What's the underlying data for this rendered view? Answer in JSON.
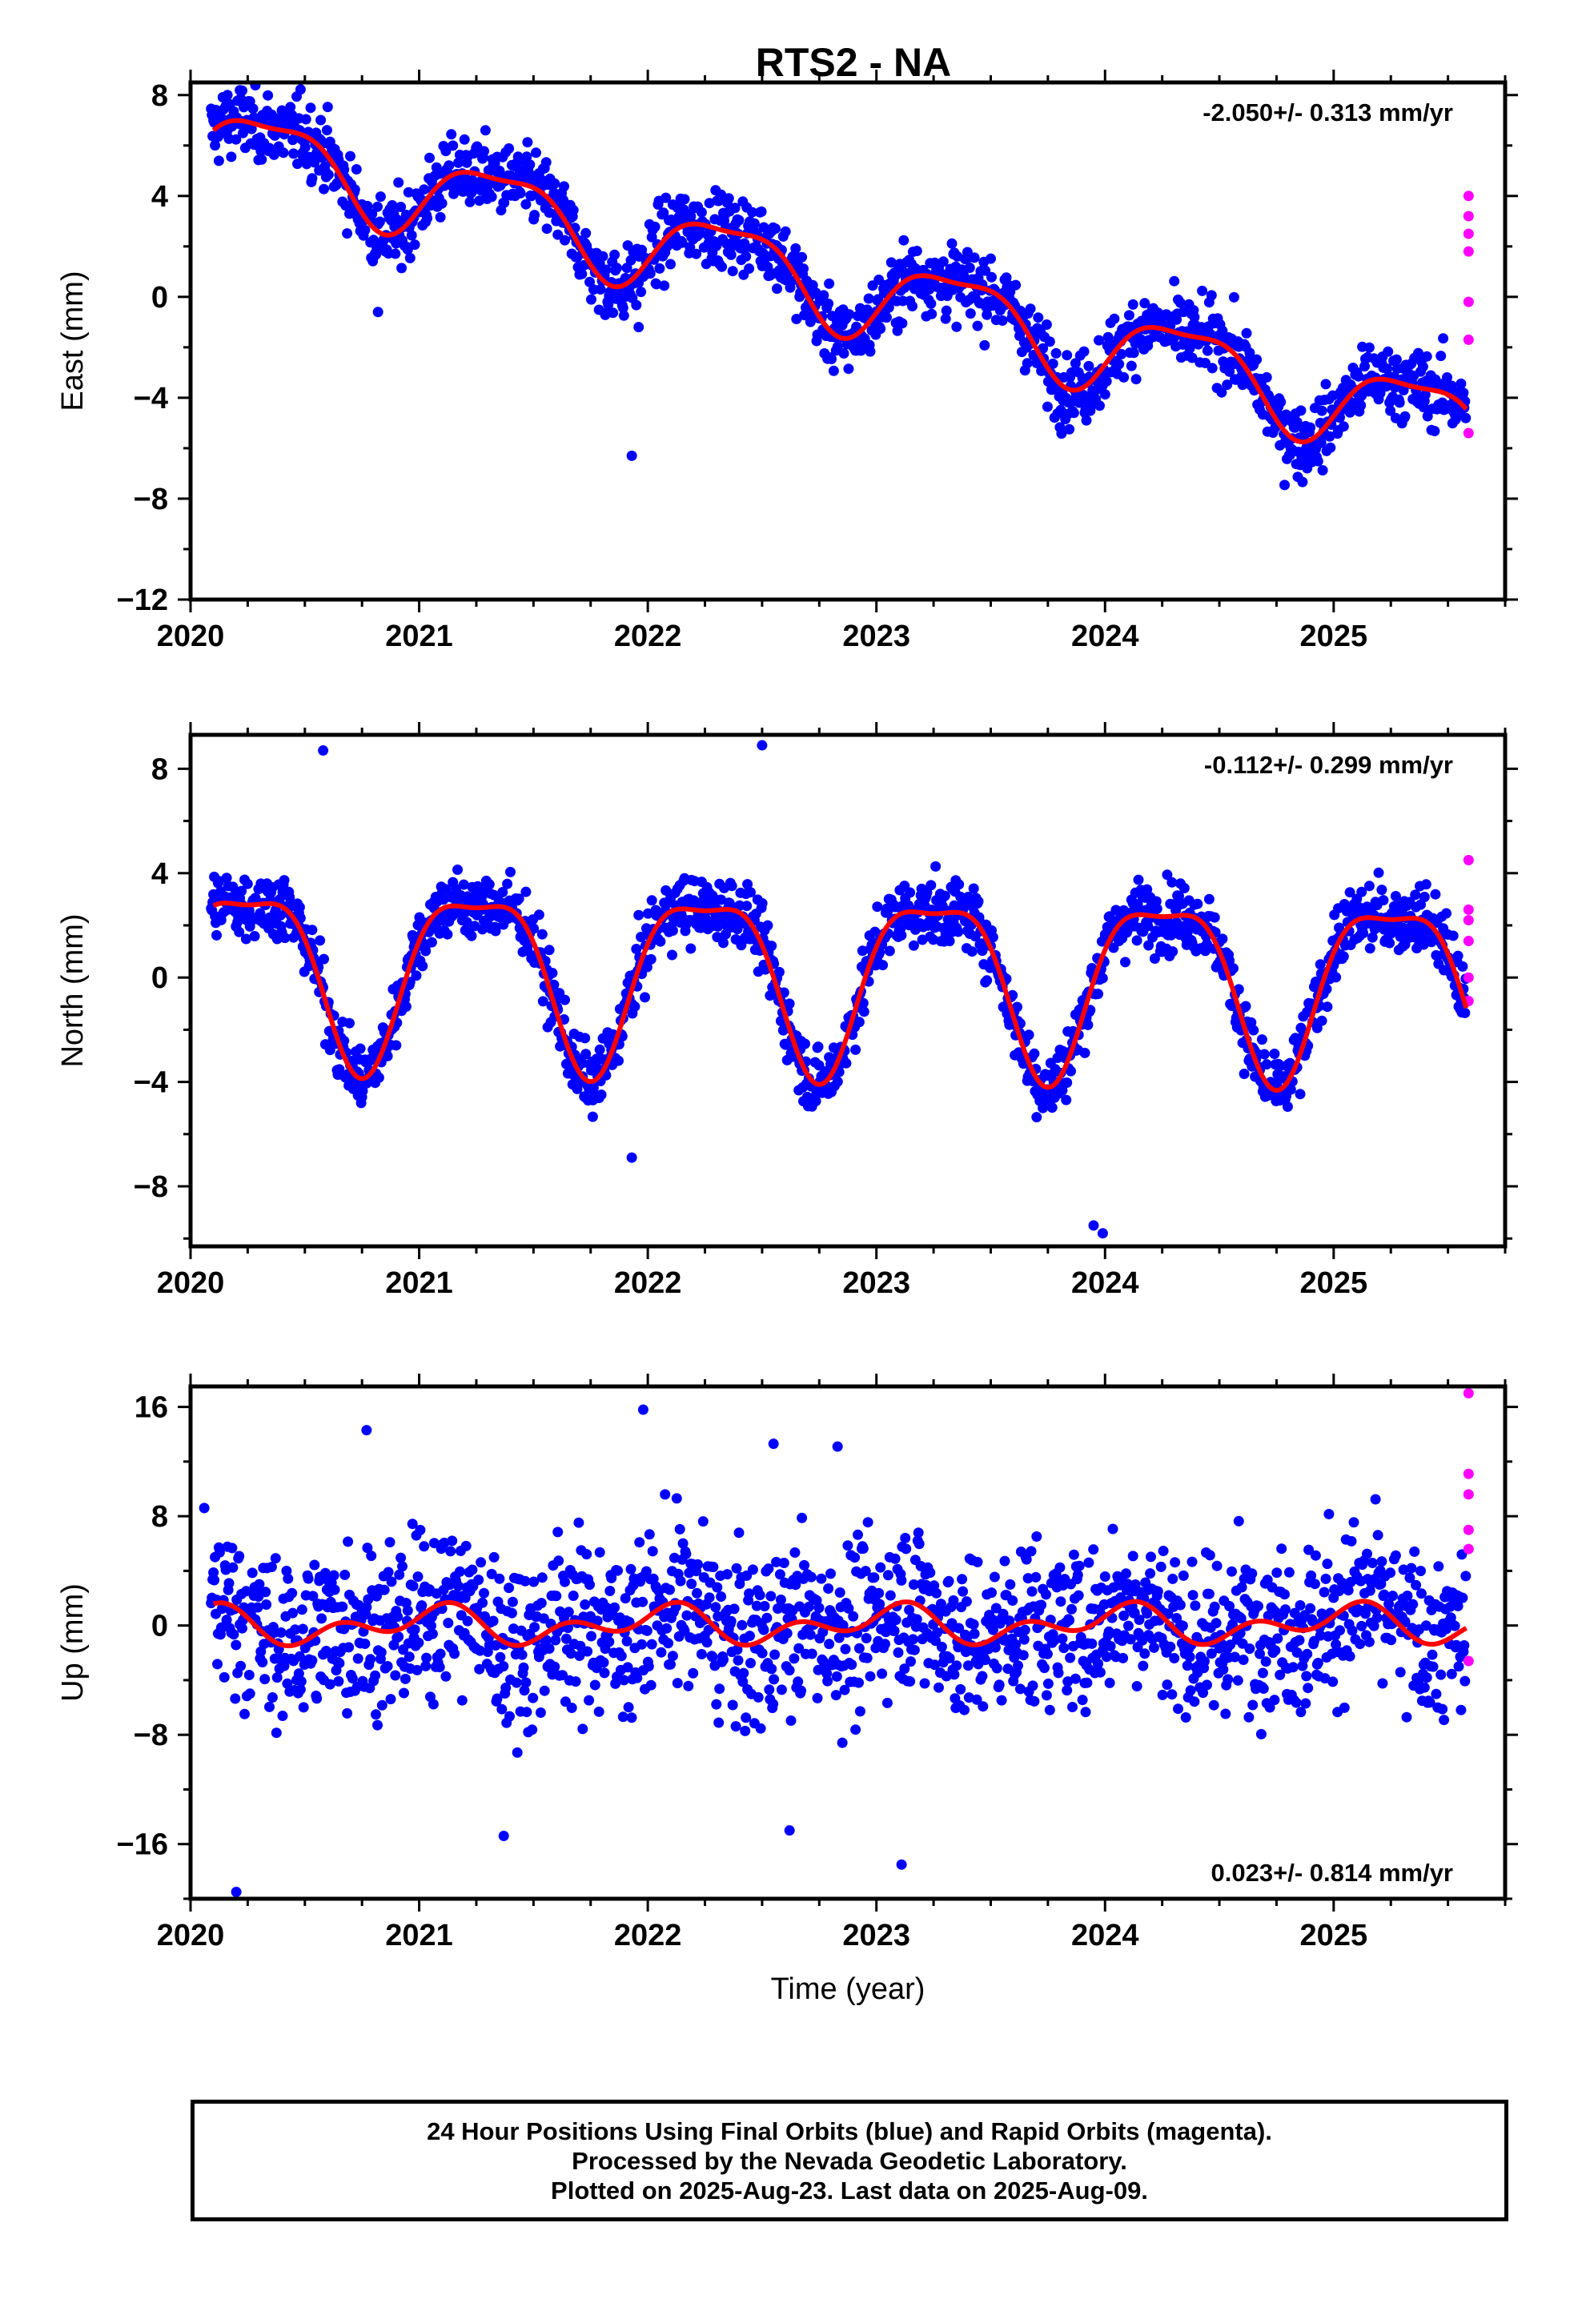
{
  "title": "RTS2 - NA",
  "footer": {
    "line1": "24 Hour Positions Using Final Orbits (blue) and Rapid Orbits (magenta).",
    "line2": "Processed by the Nevada Geodetic Laboratory.",
    "line3": "Plotted on 2025-Aug-23. Last data on 2025-Aug-09."
  },
  "colors": {
    "final": "#0000ff",
    "rapid": "#ff00ff",
    "model": "#ff0000"
  },
  "chart_data": [
    {
      "type": "scatter",
      "ylabel": "East (mm)",
      "rate_label": "-2.050+/- 0.313 mm/yr",
      "xlim": [
        2020.0,
        2025.75
      ],
      "ylim": [
        -12,
        8.5
      ],
      "yticks": [
        -12,
        -8,
        -4,
        0,
        4,
        8
      ],
      "xticks": [
        2020,
        2021,
        2022,
        2023,
        2024,
        2025
      ],
      "model": {
        "name": "fit",
        "offset": 6.1,
        "rate": -2.05,
        "annual_amp": 1.6,
        "annual_phase": 0.35,
        "semi_amp": 0.5,
        "semi_phase": 0.1
      },
      "scatter_sd": 1.0,
      "outliers": [
        [
          2020.82,
          -0.6
        ],
        [
          2021.96,
          -1.2
        ],
        [
          2021.93,
          -6.3
        ]
      ],
      "rapid": {
        "x": 2025.59,
        "y": [
          4.0,
          3.2,
          2.5,
          1.8,
          -0.2,
          -1.7,
          -5.4
        ]
      }
    },
    {
      "type": "scatter",
      "ylabel": "North (mm)",
      "rate_label": "-0.112+/- 0.299 mm/yr",
      "xlim": [
        2020.0,
        2025.75
      ],
      "ylim": [
        -10.3,
        9.3
      ],
      "yticks": [
        -8,
        -4,
        0,
        4,
        8
      ],
      "xticks": [
        2020,
        2021,
        2022,
        2023,
        2024,
        2025
      ],
      "model": {
        "name": "fit",
        "offset": 0.5,
        "rate": -0.112,
        "annual_amp": 3.3,
        "annual_phase": 0.25,
        "semi_amp": 1.0,
        "semi_phase": 0.0
      },
      "scatter_sd": 0.9,
      "outliers": [
        [
          2020.58,
          8.7
        ],
        [
          2021.76,
          -4.7
        ],
        [
          2021.93,
          -6.9
        ],
        [
          2022.5,
          8.9
        ],
        [
          2023.99,
          -9.8
        ],
        [
          2023.95,
          -9.5
        ]
      ],
      "rapid": {
        "x": 2025.59,
        "y": [
          4.5,
          2.6,
          2.2,
          1.4,
          0.0,
          -0.9
        ]
      }
    },
    {
      "type": "scatter",
      "ylabel": "Up (mm)",
      "xlabel": "Time (year)",
      "rate_label": "0.023+/- 0.814 mm/yr",
      "xlim": [
        2020.0,
        2025.75
      ],
      "ylim": [
        -20,
        17.5
      ],
      "yticks": [
        -16,
        -8,
        0,
        8,
        16
      ],
      "xticks": [
        2020,
        2021,
        2022,
        2023,
        2024,
        2025
      ],
      "model": {
        "name": "fit",
        "offset": 0.0,
        "rate": 0.023,
        "annual_amp": 0.9,
        "annual_phase": 0.05,
        "semi_amp": 0.9,
        "semi_phase": 0.15
      },
      "scatter_sd": 4.3,
      "outliers": [
        [
          2020.06,
          8.6
        ],
        [
          2020.77,
          14.3
        ],
        [
          2021.98,
          15.8
        ],
        [
          2022.55,
          13.3
        ],
        [
          2022.83,
          13.1
        ],
        [
          2020.2,
          -19.5
        ],
        [
          2021.37,
          -15.4
        ],
        [
          2023.11,
          -17.5
        ],
        [
          2022.62,
          -15.0
        ]
      ],
      "rapid": {
        "x": 2025.59,
        "y": [
          17.0,
          11.1,
          9.6,
          7.0,
          5.6,
          -2.6
        ]
      }
    }
  ]
}
